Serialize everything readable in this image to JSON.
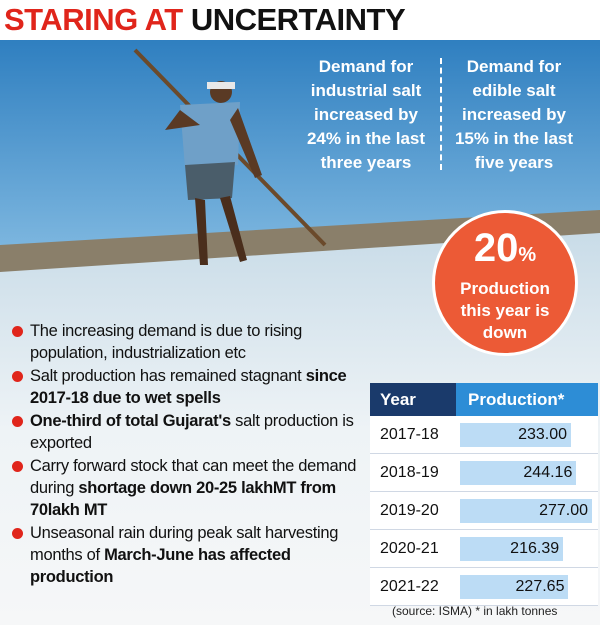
{
  "title": {
    "lead": "STARING AT",
    "rest": "UNCERTAINTY"
  },
  "callouts": [
    "Demand for industrial salt increased by 24% in the last three years",
    "Demand for edible salt increased by 15% in the last five years"
  ],
  "highlight": {
    "number": "20",
    "unit": "%",
    "text": "Production this year is down"
  },
  "bullets": [
    [
      {
        "text": "The increasing demand is due to rising population, industrialization etc",
        "bold": false
      }
    ],
    [
      {
        "text": "Salt production has remained stagnant",
        "bold": false
      },
      {
        "text": "since 2017-18 due to wet spells",
        "bold": true
      }
    ],
    [
      {
        "text": "One-third of total Gujarat's",
        "bold": true
      },
      {
        "text": "salt production is exported",
        "bold": false
      }
    ],
    [
      {
        "text": "Carry forward stock that can meet the demand during",
        "bold": false
      },
      {
        "text": "shortage down 20-25 lakhMT from 70lakh MT",
        "bold": true
      }
    ],
    [
      {
        "text": "Unseasonal rain during peak salt harvesting months of",
        "bold": false
      },
      {
        "text": "March-June has affected production",
        "bold": true
      }
    ]
  ],
  "table": {
    "headers": [
      "Year",
      "Production*"
    ],
    "rows": [
      {
        "year": "2017-18",
        "production": {
          "value": 233,
          "label": "233.00"
        }
      },
      {
        "year": "2018-19",
        "production": {
          "value": 244.16,
          "label": "244.16"
        }
      },
      {
        "year": "2019-20",
        "production": {
          "value": 277,
          "label": "277.00"
        }
      },
      {
        "year": "2020-21",
        "production": {
          "value": 216.39,
          "label": "216.39"
        }
      },
      {
        "year": "2021-22",
        "production": {
          "value": 227.65,
          "label": "227.65"
        }
      }
    ],
    "source": "(source: ISMA) * in lakh tonnes"
  }
}
